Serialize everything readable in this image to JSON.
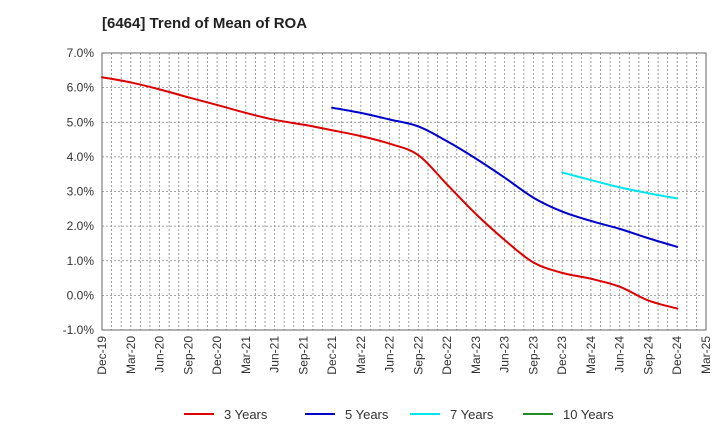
{
  "chart_data": {
    "type": "line",
    "title": "[6464]  Trend of Mean of ROA",
    "xlabel": "",
    "ylabel": "",
    "ylim": [
      -1.0,
      7.0
    ],
    "yticks": [
      7.0,
      6.0,
      5.0,
      4.0,
      3.0,
      2.0,
      1.0,
      0.0,
      -1.0
    ],
    "ytick_labels": [
      "7.0%",
      "6.0%",
      "5.0%",
      "4.0%",
      "3.0%",
      "2.0%",
      "1.0%",
      "0.0%",
      "-1.0%"
    ],
    "x_months_range": [
      0,
      63
    ],
    "xtick_labels": [
      "Dec-19",
      "Mar-20",
      "Jun-20",
      "Sep-20",
      "Dec-20",
      "Mar-21",
      "Jun-21",
      "Sep-21",
      "Dec-21",
      "Mar-22",
      "Jun-22",
      "Sep-22",
      "Dec-22",
      "Mar-23",
      "Jun-23",
      "Sep-23",
      "Dec-23",
      "Mar-24",
      "Jun-24",
      "Sep-24",
      "Dec-24",
      "Mar-25"
    ],
    "grid": true,
    "legend_position": "bottom",
    "series": [
      {
        "name": "3 Years",
        "color": "#dd0000",
        "x_month": [
          0,
          3,
          6,
          9,
          12,
          15,
          18,
          21,
          24,
          27,
          30,
          33,
          36,
          39,
          42,
          45,
          48,
          51,
          54,
          57,
          60
        ],
        "values": [
          6.3,
          6.15,
          5.95,
          5.72,
          5.5,
          5.27,
          5.07,
          4.93,
          4.77,
          4.6,
          4.38,
          4.05,
          3.2,
          2.35,
          1.6,
          0.95,
          0.65,
          0.48,
          0.25,
          -0.15,
          -0.38
        ]
      },
      {
        "name": "5 Years",
        "color": "#0000cc",
        "x_month": [
          24,
          27,
          30,
          33,
          36,
          39,
          42,
          45,
          48,
          51,
          54,
          57,
          60
        ],
        "values": [
          5.42,
          5.27,
          5.08,
          4.88,
          4.45,
          3.95,
          3.4,
          2.82,
          2.42,
          2.15,
          1.92,
          1.65,
          1.4
        ]
      },
      {
        "name": "7 Years",
        "color": "#00e5ee",
        "x_month": [
          48,
          51,
          54,
          57,
          60
        ],
        "values": [
          3.55,
          3.33,
          3.12,
          2.95,
          2.8
        ]
      },
      {
        "name": "10 Years",
        "color": "#228b22",
        "x_month": [],
        "values": []
      }
    ]
  }
}
